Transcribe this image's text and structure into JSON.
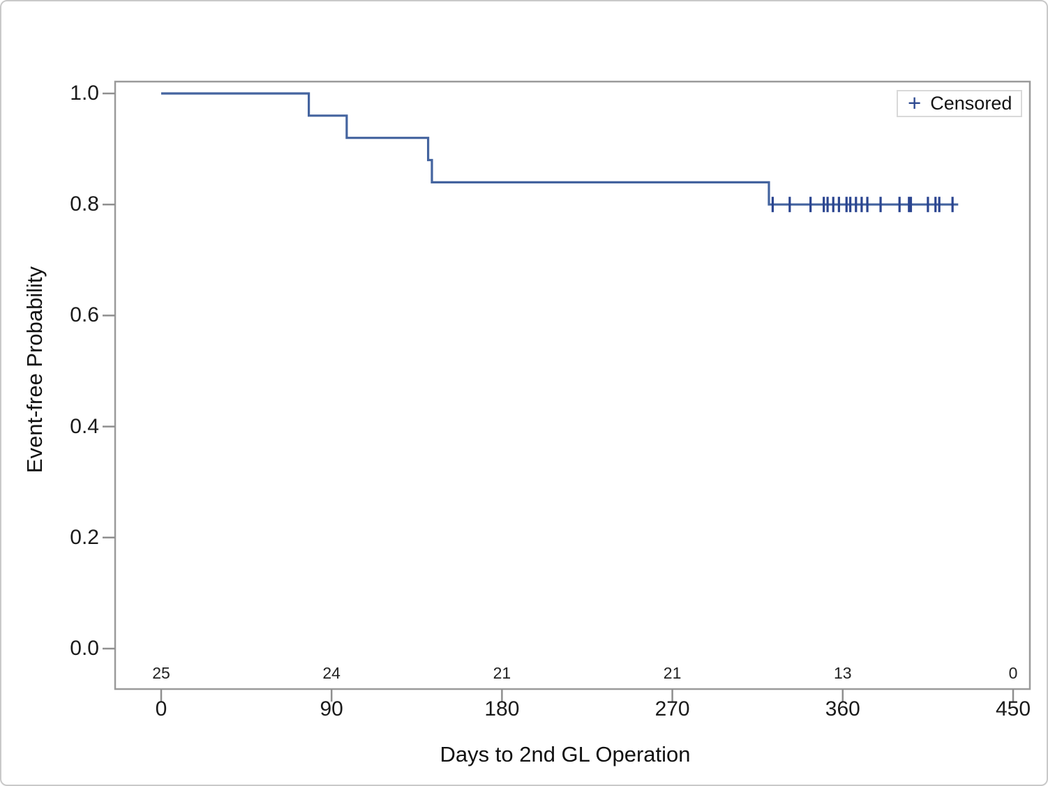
{
  "figure": {
    "background": "#ffffff",
    "border_color": "#c9c9c9"
  },
  "chart_data": {
    "type": "line",
    "subtype": "kaplan-meier-step-curve",
    "title": "",
    "xlabel": "Days to 2nd GL Operation",
    "ylabel": "Event-free Probability",
    "xlim": [
      0,
      450
    ],
    "ylim": [
      0.0,
      1.0
    ],
    "grid": false,
    "x_ticks": [
      0,
      90,
      180,
      270,
      360,
      450
    ],
    "x_tick_labels": [
      "0",
      "90",
      "180",
      "270",
      "360",
      "450"
    ],
    "y_ticks": [
      0.0,
      0.2,
      0.4,
      0.6,
      0.8,
      1.0
    ],
    "y_tick_labels": [
      "0.0",
      "0.2",
      "0.4",
      "0.6",
      "0.8",
      "1.0"
    ],
    "line_color": "#44649f",
    "censor_color": "#2b4590",
    "axis_color": "#9a9a9a",
    "legend": {
      "marker": "+",
      "label": "Censored",
      "position": "top-right"
    },
    "series": [
      {
        "name": "Event-free Probability",
        "step_points": [
          [
            0,
            1.0
          ],
          [
            78,
            1.0
          ],
          [
            78,
            0.96
          ],
          [
            98,
            0.96
          ],
          [
            98,
            0.92
          ],
          [
            141,
            0.92
          ],
          [
            141,
            0.88
          ],
          [
            143,
            0.88
          ],
          [
            143,
            0.84
          ],
          [
            321,
            0.84
          ],
          [
            321,
            0.8
          ],
          [
            421,
            0.8
          ]
        ],
        "event_days": [
          78,
          98,
          141,
          143,
          321
        ],
        "drop_per_event": 0.04
      }
    ],
    "censored": {
      "y": 0.8,
      "days": [
        323,
        332,
        343,
        350,
        352,
        355,
        358,
        362,
        364,
        367,
        370,
        373,
        380,
        390,
        395,
        396,
        405,
        409,
        411,
        418
      ]
    },
    "at_risk": {
      "times": [
        0,
        90,
        180,
        270,
        360,
        450
      ],
      "counts": [
        "25",
        "24",
        "21",
        "21",
        "13",
        "0"
      ]
    }
  }
}
